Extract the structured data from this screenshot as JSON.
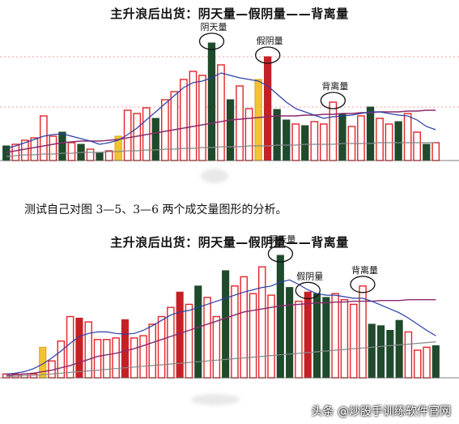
{
  "titles": {
    "top": "主升浪后出货：阴天量—假阴量——背离量",
    "bottom": "主升浪后出货：阴天量—假阴量——背离量"
  },
  "caption": "测试自己对图 3—5、3—6 两个成交量图形的分析。",
  "watermark": "头条 @炒股手训练软件官网",
  "colors": {
    "red_outline": "#e2242a",
    "red_fill": "#c62026",
    "dark_green": "#1f4a2c",
    "yellow": "#f2c431",
    "blue_line": "#2d3fa8",
    "purple_line": "#8a2a6a",
    "grey_line": "#888888",
    "dashed_grid": "#f0a0a0"
  },
  "chart_data": [
    {
      "type": "bar",
      "title": "主升浪后出货：阴天量—假阴量——背离量",
      "ylim": [
        0,
        160
      ],
      "annotations": [
        {
          "text": "阴天量",
          "bar_index": 22
        },
        {
          "text": "假阴量",
          "bar_index": 28
        },
        {
          "text": "背离量",
          "bar_index": 35
        }
      ],
      "bars": [
        {
          "v": 18,
          "k": "dg"
        },
        {
          "v": 20,
          "k": "o"
        },
        {
          "v": 25,
          "k": "o"
        },
        {
          "v": 28,
          "k": "o"
        },
        {
          "v": 55,
          "k": "o"
        },
        {
          "v": 30,
          "k": "o"
        },
        {
          "v": 35,
          "k": "dg"
        },
        {
          "v": 22,
          "k": "o"
        },
        {
          "v": 20,
          "k": "dg"
        },
        {
          "v": 14,
          "k": "o"
        },
        {
          "v": 10,
          "k": "dg"
        },
        {
          "v": 12,
          "k": "o"
        },
        {
          "v": 30,
          "k": "y"
        },
        {
          "v": 62,
          "k": "o"
        },
        {
          "v": 58,
          "k": "o"
        },
        {
          "v": 65,
          "k": "o"
        },
        {
          "v": 52,
          "k": "dg"
        },
        {
          "v": 75,
          "k": "o"
        },
        {
          "v": 85,
          "k": "o"
        },
        {
          "v": 100,
          "k": "o"
        },
        {
          "v": 110,
          "k": "o"
        },
        {
          "v": 105,
          "k": "o"
        },
        {
          "v": 145,
          "k": "dg"
        },
        {
          "v": 118,
          "k": "o"
        },
        {
          "v": 75,
          "k": "dg"
        },
        {
          "v": 92,
          "k": "o"
        },
        {
          "v": 64,
          "k": "o"
        },
        {
          "v": 100,
          "k": "y"
        },
        {
          "v": 128,
          "k": "r"
        },
        {
          "v": 63,
          "k": "dg"
        },
        {
          "v": 50,
          "k": "dg"
        },
        {
          "v": 45,
          "k": "o"
        },
        {
          "v": 43,
          "k": "dg"
        },
        {
          "v": 48,
          "k": "o"
        },
        {
          "v": 45,
          "k": "o"
        },
        {
          "v": 72,
          "k": "o"
        },
        {
          "v": 58,
          "k": "dg"
        },
        {
          "v": 42,
          "k": "o"
        },
        {
          "v": 55,
          "k": "o"
        },
        {
          "v": 66,
          "k": "dg"
        },
        {
          "v": 52,
          "k": "o"
        },
        {
          "v": 45,
          "k": "o"
        },
        {
          "v": 48,
          "k": "dg"
        },
        {
          "v": 58,
          "k": "o"
        },
        {
          "v": 35,
          "k": "o"
        },
        {
          "v": 20,
          "k": "dg"
        },
        {
          "v": 22,
          "k": "o"
        }
      ],
      "lines": {
        "short_ma": [
          15,
          18,
          22,
          26,
          30,
          32,
          33,
          30,
          27,
          24,
          20,
          22,
          25,
          32,
          40,
          50,
          60,
          70,
          80,
          90,
          96,
          98,
          102,
          108,
          105,
          102,
          100,
          98,
          92,
          82,
          72,
          64,
          60,
          56,
          52,
          54,
          55,
          56,
          58,
          60,
          60,
          58,
          56,
          55,
          50,
          42,
          38
        ],
        "long_ma": [
          10,
          12,
          14,
          16,
          18,
          20,
          22,
          23,
          24,
          24,
          24,
          25,
          26,
          28,
          30,
          32,
          34,
          36,
          38,
          40,
          42,
          44,
          46,
          48,
          50,
          51,
          52,
          53,
          54,
          55,
          55,
          55,
          56,
          56,
          57,
          57,
          58,
          58,
          59,
          59,
          60,
          60,
          60,
          61,
          61,
          62,
          62
        ],
        "base": [
          5,
          6,
          7,
          7,
          8,
          8,
          9,
          9,
          10,
          10,
          10,
          11,
          11,
          12,
          12,
          13,
          13,
          14,
          14,
          15,
          15,
          16,
          16,
          17,
          17,
          17,
          18,
          18,
          18,
          19,
          19,
          19,
          20,
          20,
          20,
          20,
          21,
          21,
          21,
          21,
          22,
          22,
          22,
          22,
          22,
          22,
          22
        ]
      }
    },
    {
      "type": "bar",
      "title": "主升浪后出货：阴天量—假阴量——背离量",
      "ylim": [
        0,
        160
      ],
      "annotations": [
        {
          "text": "阴天量",
          "bar_index": 30
        },
        {
          "text": "假阴量",
          "bar_index": 33
        },
        {
          "text": "背离量",
          "bar_index": 39
        }
      ],
      "bars": [
        {
          "v": 5,
          "k": "o"
        },
        {
          "v": 5,
          "k": "o"
        },
        {
          "v": 5,
          "k": "o"
        },
        {
          "v": 5,
          "k": "o"
        },
        {
          "v": 40,
          "k": "y"
        },
        {
          "v": 22,
          "k": "o"
        },
        {
          "v": 48,
          "k": "o"
        },
        {
          "v": 80,
          "k": "o"
        },
        {
          "v": 78,
          "k": "r"
        },
        {
          "v": 73,
          "k": "o"
        },
        {
          "v": 50,
          "k": "o"
        },
        {
          "v": 50,
          "k": "o"
        },
        {
          "v": 52,
          "k": "o"
        },
        {
          "v": 76,
          "k": "r"
        },
        {
          "v": 52,
          "k": "o"
        },
        {
          "v": 55,
          "k": "o"
        },
        {
          "v": 70,
          "k": "o"
        },
        {
          "v": 80,
          "k": "o"
        },
        {
          "v": 92,
          "k": "o"
        },
        {
          "v": 112,
          "k": "r"
        },
        {
          "v": 96,
          "k": "o"
        },
        {
          "v": 120,
          "k": "dg"
        },
        {
          "v": 105,
          "k": "o"
        },
        {
          "v": 80,
          "k": "o"
        },
        {
          "v": 140,
          "k": "dg"
        },
        {
          "v": 120,
          "k": "o"
        },
        {
          "v": 132,
          "k": "o"
        },
        {
          "v": 110,
          "k": "o"
        },
        {
          "v": 145,
          "k": "o"
        },
        {
          "v": 108,
          "k": "o"
        },
        {
          "v": 160,
          "k": "dg"
        },
        {
          "v": 118,
          "k": "dg"
        },
        {
          "v": 100,
          "k": "o"
        },
        {
          "v": 112,
          "k": "r"
        },
        {
          "v": 110,
          "k": "dg"
        },
        {
          "v": 105,
          "k": "dg"
        },
        {
          "v": 110,
          "k": "o"
        },
        {
          "v": 102,
          "k": "o"
        },
        {
          "v": 96,
          "k": "o"
        },
        {
          "v": 120,
          "k": "o"
        },
        {
          "v": 70,
          "k": "dg"
        },
        {
          "v": 68,
          "k": "dg"
        },
        {
          "v": 62,
          "k": "dg"
        },
        {
          "v": 75,
          "k": "dg"
        },
        {
          "v": 60,
          "k": "o"
        },
        {
          "v": 36,
          "k": "o"
        },
        {
          "v": 40,
          "k": "o"
        },
        {
          "v": 42,
          "k": "dg"
        }
      ],
      "lines": {
        "short_ma": [
          5,
          6,
          8,
          12,
          18,
          26,
          35,
          45,
          54,
          58,
          60,
          60,
          58,
          57,
          58,
          62,
          68,
          75,
          82,
          86,
          88,
          92,
          96,
          100,
          104,
          108,
          112,
          115,
          118,
          120,
          125,
          128,
          122,
          115,
          110,
          108,
          108,
          106,
          104,
          104,
          100,
          95,
          90,
          85,
          78,
          70,
          62,
          55
        ],
        "long_ma": [
          3,
          4,
          5,
          6,
          8,
          10,
          13,
          16,
          20,
          24,
          28,
          30,
          32,
          35,
          38,
          42,
          46,
          50,
          54,
          58,
          62,
          66,
          70,
          74,
          78,
          82,
          86,
          88,
          90,
          92,
          94,
          95,
          96,
          97,
          98,
          98,
          99,
          99,
          100,
          100,
          100,
          101,
          101,
          101,
          102,
          102,
          102,
          102
        ],
        "base": [
          2,
          2,
          3,
          3,
          4,
          5,
          6,
          7,
          8,
          9,
          10,
          11,
          12,
          13,
          14,
          15,
          16,
          17,
          18,
          19,
          20,
          21,
          22,
          23,
          24,
          25,
          26,
          27,
          28,
          29,
          30,
          31,
          32,
          33,
          34,
          35,
          36,
          37,
          38,
          39,
          40,
          41,
          42,
          43,
          44,
          45,
          46,
          47
        ]
      }
    }
  ]
}
